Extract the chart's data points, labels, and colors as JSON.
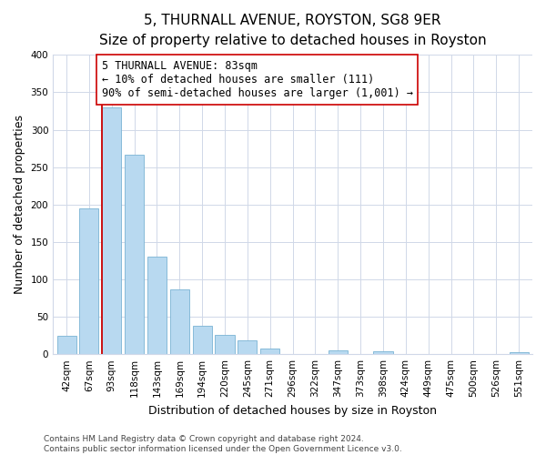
{
  "title": "5, THURNALL AVENUE, ROYSTON, SG8 9ER",
  "subtitle": "Size of property relative to detached houses in Royston",
  "xlabel": "Distribution of detached houses by size in Royston",
  "ylabel": "Number of detached properties",
  "bin_labels": [
    "42sqm",
    "67sqm",
    "93sqm",
    "118sqm",
    "143sqm",
    "169sqm",
    "194sqm",
    "220sqm",
    "245sqm",
    "271sqm",
    "296sqm",
    "322sqm",
    "347sqm",
    "373sqm",
    "398sqm",
    "424sqm",
    "449sqm",
    "475sqm",
    "500sqm",
    "526sqm",
    "551sqm"
  ],
  "bar_values": [
    25,
    195,
    330,
    267,
    130,
    86,
    38,
    26,
    18,
    8,
    0,
    0,
    5,
    0,
    4,
    0,
    0,
    0,
    0,
    0,
    3
  ],
  "bar_color": "#b8d9f0",
  "bar_edge_color": "#7ab3d4",
  "vline_color": "#cc0000",
  "annotation_line1": "5 THURNALL AVENUE: 83sqm",
  "annotation_line2": "← 10% of detached houses are smaller (111)",
  "annotation_line3": "90% of semi-detached houses are larger (1,001) →",
  "annotation_box_color": "#ffffff",
  "annotation_box_edge": "#cc0000",
  "ylim": [
    0,
    400
  ],
  "yticks": [
    0,
    50,
    100,
    150,
    200,
    250,
    300,
    350,
    400
  ],
  "footer_line1": "Contains HM Land Registry data © Crown copyright and database right 2024.",
  "footer_line2": "Contains public sector information licensed under the Open Government Licence v3.0.",
  "title_fontsize": 11,
  "subtitle_fontsize": 9.5,
  "axis_label_fontsize": 9,
  "tick_fontsize": 7.5,
  "annotation_fontsize": 8.5,
  "footer_fontsize": 6.5,
  "background_color": "#ffffff",
  "grid_color": "#d0d8e8"
}
